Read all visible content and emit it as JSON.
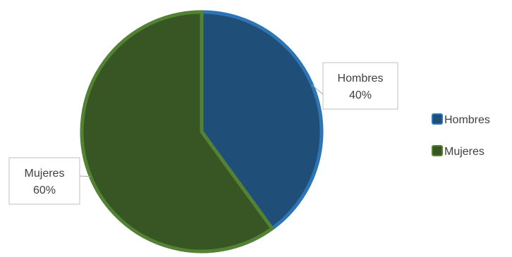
{
  "chart_data": {
    "type": "pie",
    "categories": [
      "Hombres",
      "Mujeres"
    ],
    "values": [
      40,
      60
    ],
    "data_labels": [
      {
        "name": "Hombres",
        "value": "40%"
      },
      {
        "name": "Mujeres",
        "value": "60%"
      }
    ],
    "colors": [
      "#1f4e79",
      "#375623"
    ],
    "outline_colors": [
      "#2e75b6",
      "#548235"
    ],
    "legend": {
      "position": "right",
      "entries": [
        "Hombres",
        "Mujeres"
      ]
    }
  }
}
